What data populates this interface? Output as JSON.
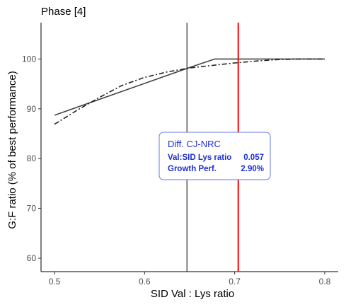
{
  "chart_data": {
    "type": "line",
    "title": "Phase [4]",
    "xlabel": "SID Val : Lys ratio",
    "ylabel": "G:F ratio (% of best performance)",
    "xlim": [
      0.485,
      0.815
    ],
    "ylim": [
      57.3,
      107.3
    ],
    "xticks": [
      0.5,
      0.6,
      0.7,
      0.8
    ],
    "xtick_labels": [
      "0.5",
      "0.6",
      "0.7",
      "0.8"
    ],
    "yticks": [
      60,
      70,
      80,
      90,
      100
    ],
    "ytick_labels": [
      "60",
      "70",
      "80",
      "90",
      "100"
    ],
    "grid": false,
    "series": [
      {
        "style": "solid",
        "color": "#444444",
        "x": [
          0.5,
          0.55,
          0.6,
          0.65,
          0.678,
          0.7,
          0.75,
          0.8
        ],
        "y": [
          88.7,
          91.9,
          95.1,
          98.3,
          100.0,
          100.0,
          100.0,
          100.0
        ]
      },
      {
        "style": "dashdot",
        "color": "#222222",
        "x": [
          0.5,
          0.525,
          0.55,
          0.575,
          0.6,
          0.625,
          0.65,
          0.675,
          0.7,
          0.725,
          0.75,
          0.775,
          0.8
        ],
        "y": [
          86.9,
          89.7,
          92.3,
          94.7,
          96.3,
          97.4,
          98.2,
          98.7,
          99.2,
          99.6,
          99.9,
          100.0,
          100.0
        ]
      }
    ],
    "vlines": [
      {
        "x": 0.647,
        "color": "#000000",
        "width": 1
      },
      {
        "x": 0.704,
        "color": "#ff0000",
        "width": 2
      }
    ],
    "annotation": {
      "title": "Diff. CJ-NRC",
      "rows": [
        {
          "label": "Val:SID Lys ratio",
          "value": "0.057"
        },
        {
          "label": "Growth Perf.",
          "value": "2.90%"
        }
      ],
      "text_color": "#1f2fd1",
      "border_color": "#6a77e8"
    }
  }
}
